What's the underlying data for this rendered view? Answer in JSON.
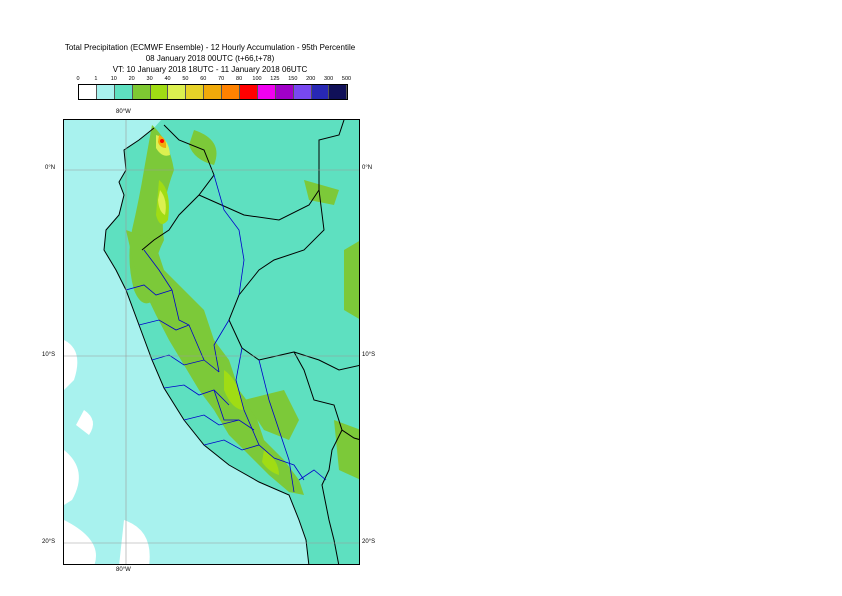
{
  "title": {
    "line1": "Total Precipitation (ECMWF Ensemble) - 12 Hourly Accumulation - 95th Percentile",
    "line2": "08 January 2018 00UTC (t+66,t+78)",
    "line3": "VT: 10 January 2018 18UTC - 11 January 2018 06UTC"
  },
  "legend": {
    "labels": [
      "0",
      "1",
      "10",
      "20",
      "30",
      "40",
      "50",
      "60",
      "70",
      "80",
      "100",
      "125",
      "150",
      "200",
      "300",
      "500"
    ],
    "colors": [
      "#ffffff",
      "#a8f2ee",
      "#5ee0c0",
      "#7ec832",
      "#a0dc14",
      "#dcf050",
      "#e6d228",
      "#f0aa0a",
      "#ff8200",
      "#ff0000",
      "#f000f0",
      "#a000c8",
      "#7848f0",
      "#2828b4",
      "#101058"
    ]
  },
  "map": {
    "ocean_color": "#a8f2ee",
    "land_color": "#5ee0c0",
    "coords": {
      "lon_top": "80°W",
      "lon_bottom": "80°W",
      "lat_0_left": "0°N",
      "lat_0_right": "0°N",
      "lat_10_left": "10°S",
      "lat_10_right": "10°S",
      "lat_20_left": "20°S",
      "lat_20_right": "20°S"
    }
  }
}
